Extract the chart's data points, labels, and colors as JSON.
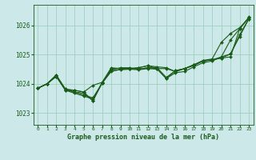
{
  "title": "Graphe pression niveau de la mer (hPa)",
  "bg_color": "#cce8e8",
  "line_color": "#1a5c1a",
  "grid_color": "#99ccbb",
  "xlim": [
    -0.5,
    23.5
  ],
  "ylim": [
    1022.6,
    1026.7
  ],
  "yticks": [
    1023,
    1024,
    1025,
    1026
  ],
  "xticks": [
    0,
    1,
    2,
    3,
    4,
    5,
    6,
    7,
    8,
    9,
    10,
    11,
    12,
    13,
    14,
    15,
    16,
    17,
    18,
    19,
    20,
    21,
    22,
    23
  ],
  "series": [
    [
      1023.85,
      1024.0,
      1024.25,
      1023.8,
      1023.78,
      1023.72,
      1023.95,
      1024.05,
      1024.45,
      1024.48,
      1024.5,
      1024.48,
      1024.52,
      1024.5,
      1024.18,
      1024.38,
      1024.42,
      1024.58,
      1024.72,
      1024.78,
      1024.92,
      1025.5,
      1025.88,
      1026.25
    ],
    [
      1023.85,
      1024.0,
      1024.25,
      1023.78,
      1023.72,
      1023.62,
      1023.52,
      1024.02,
      1024.42,
      1024.5,
      1024.52,
      1024.5,
      1024.55,
      1024.55,
      1024.22,
      1024.45,
      1024.52,
      1024.65,
      1024.8,
      1024.85,
      1025.42,
      1025.72,
      1025.92,
      1026.25
    ],
    [
      1023.85,
      1024.0,
      1024.28,
      1023.78,
      1023.68,
      1023.58,
      1023.48,
      1024.02,
      1024.48,
      1024.55,
      1024.55,
      1024.5,
      1024.55,
      1024.52,
      1024.18,
      1024.45,
      1024.52,
      1024.65,
      1024.78,
      1024.82,
      1024.88,
      1024.92,
      1025.88,
      1026.28
    ],
    [
      1023.85,
      1024.0,
      1024.3,
      1023.82,
      1023.78,
      1023.72,
      1023.42,
      1024.05,
      1024.55,
      1024.52,
      1024.52,
      1024.55,
      1024.62,
      1024.58,
      1024.55,
      1024.42,
      1024.52,
      1024.62,
      1024.78,
      1024.82,
      1024.92,
      1025.02,
      1025.62,
      1026.22
    ],
    [
      1023.85,
      1024.0,
      1024.3,
      1023.82,
      1023.72,
      1023.68,
      1023.42,
      1024.02,
      1024.52,
      1024.52,
      1024.52,
      1024.55,
      1024.62,
      1024.52,
      1024.52,
      1024.42,
      1024.52,
      1024.65,
      1024.78,
      1024.82,
      1024.88,
      1025.02,
      1025.68,
      1026.22
    ]
  ]
}
